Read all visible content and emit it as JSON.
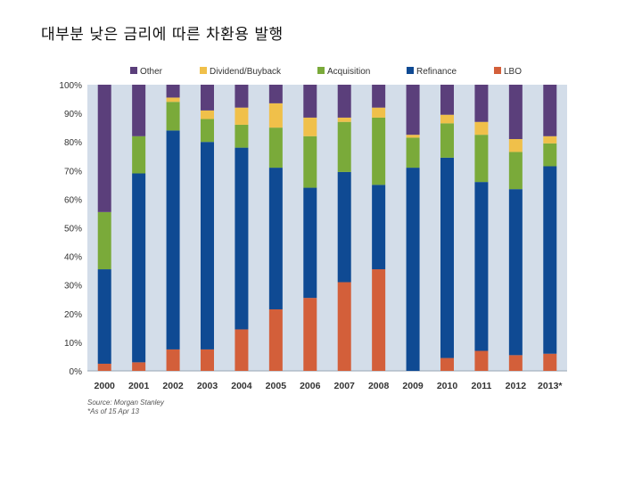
{
  "slide": {
    "title": "대부분 낮은 금리에 따른 차환용 발행"
  },
  "source": {
    "line1": "Source: Morgan Stanley",
    "line2": "*As of 15 Apr 13"
  },
  "chart_data": {
    "type": "bar",
    "stacked": true,
    "categories": [
      "2000",
      "2001",
      "2002",
      "2003",
      "2004",
      "2005",
      "2006",
      "2007",
      "2008",
      "2009",
      "2010",
      "2011",
      "2012",
      "2013*"
    ],
    "ylim": [
      0,
      100
    ],
    "yticks": [
      0,
      10,
      20,
      30,
      40,
      50,
      60,
      70,
      80,
      90,
      100
    ],
    "ytick_labels": [
      "0%",
      "10%",
      "20%",
      "30%",
      "40%",
      "50%",
      "60%",
      "70%",
      "80%",
      "90%",
      "100%"
    ],
    "grid": false,
    "legend_position": "top",
    "legend_order": [
      "Other",
      "Dividend/Buyback",
      "Acquisition",
      "Refinance",
      "LBO"
    ],
    "series": [
      {
        "name": "LBO",
        "color": "#d35f3a",
        "values": [
          2.5,
          3,
          7.5,
          7.5,
          14.5,
          21.5,
          25.5,
          31,
          35.5,
          0,
          4.5,
          7,
          5.5,
          6
        ]
      },
      {
        "name": "Refinance",
        "color": "#0f4a93",
        "values": [
          33,
          66,
          76.5,
          72.5,
          63.5,
          49.5,
          38.5,
          38.5,
          29.5,
          71,
          70,
          59,
          58,
          65.5
        ]
      },
      {
        "name": "Acquisition",
        "color": "#7aaa3a",
        "values": [
          20,
          13,
          10,
          8,
          8,
          14,
          18,
          17.5,
          23.5,
          10.5,
          12,
          16.5,
          13,
          8
        ]
      },
      {
        "name": "Dividend/Buyback",
        "color": "#f0c04a",
        "values": [
          0,
          0,
          1.5,
          3,
          6,
          8.5,
          6.5,
          1.5,
          3.5,
          1,
          3,
          4.5,
          4.5,
          2.5
        ]
      },
      {
        "name": "Other",
        "color": "#5b3f7b",
        "values": [
          44.5,
          18,
          4.5,
          9,
          8,
          6.5,
          11.5,
          11.5,
          8,
          17.5,
          10.5,
          13,
          19,
          18
        ]
      }
    ]
  }
}
